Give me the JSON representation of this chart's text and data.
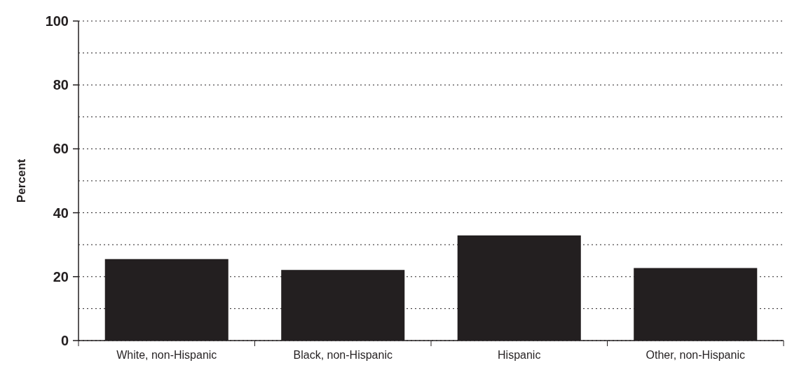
{
  "chart_data": {
    "type": "bar",
    "ylabel": "Percent",
    "categories": [
      "White, non-Hispanic",
      "Black, non-Hispanic",
      "Hispanic",
      "Other, non-Hispanic"
    ],
    "values": [
      25.5,
      22.1,
      32.9,
      22.7
    ],
    "color": "#231f20",
    "ylim": [
      0,
      100
    ],
    "yticks": [
      0,
      {
        "value": 10,
        "label": null
      },
      20,
      {
        "value": 30,
        "label": null
      },
      40,
      {
        "value": 50,
        "label": null
      },
      60,
      {
        "value": 70,
        "label": null
      },
      80,
      {
        "value": 90,
        "label": null
      },
      100
    ],
    "grid": "y"
  }
}
